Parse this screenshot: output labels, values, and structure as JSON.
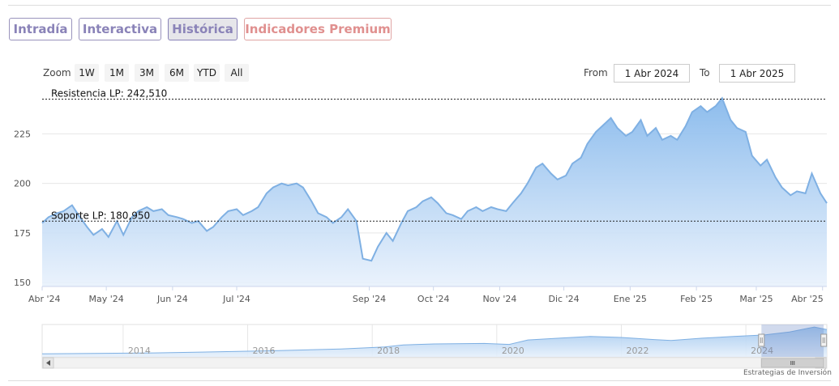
{
  "tabs": [
    {
      "label": "Intradía",
      "active": false
    },
    {
      "label": "Interactiva",
      "active": false
    },
    {
      "label": "Histórica",
      "active": true
    },
    {
      "label": "Indicadores Premium",
      "active": false
    }
  ],
  "zoom": {
    "label": "Zoom",
    "options": [
      "1W",
      "1M",
      "3M",
      "6M",
      "YTD",
      "All"
    ]
  },
  "range": {
    "from_label": "From",
    "from_value": "1 Abr 2024",
    "to_label": "To",
    "to_value": "1 Abr 2025"
  },
  "credit": "Estrategias de Inversión",
  "colors": {
    "line": "#7fb0e3",
    "fill": "#a9cdf1",
    "accent": "#8a83b8",
    "premium": "#e0908f"
  },
  "chart_data": {
    "type": "area",
    "y_ticks": [
      150,
      175,
      200,
      225
    ],
    "ylim": [
      148,
      246
    ],
    "x_ticks": [
      "Abr '24",
      "May '24",
      "Jun '24",
      "Jul '24",
      "Sep '24",
      "Oct '24",
      "Nov '24",
      "Dic '24",
      "Ene '25",
      "Feb '25",
      "Mar '25",
      "Abr '25"
    ],
    "x_tick_dates": [
      "2024-04-01",
      "2024-05-01",
      "2024-06-01",
      "2024-07-01",
      "2024-09-01",
      "2024-10-01",
      "2024-11-01",
      "2024-12-01",
      "2025-01-01",
      "2025-02-01",
      "2025-03-01",
      "2025-04-01"
    ],
    "date_range": [
      "2024-04-01",
      "2025-04-03"
    ],
    "series": [
      {
        "points": [
          [
            "2024-04-01",
            180
          ],
          [
            "2024-04-04",
            183
          ],
          [
            "2024-04-08",
            185
          ],
          [
            "2024-04-11",
            186
          ],
          [
            "2024-04-15",
            189
          ],
          [
            "2024-04-18",
            184
          ],
          [
            "2024-04-22",
            178
          ],
          [
            "2024-04-25",
            174
          ],
          [
            "2024-04-29",
            177
          ],
          [
            "2024-05-02",
            173
          ],
          [
            "2024-05-06",
            181
          ],
          [
            "2024-05-09",
            174
          ],
          [
            "2024-05-13",
            183
          ],
          [
            "2024-05-16",
            186
          ],
          [
            "2024-05-20",
            188
          ],
          [
            "2024-05-23",
            186
          ],
          [
            "2024-05-27",
            187
          ],
          [
            "2024-05-30",
            184
          ],
          [
            "2024-06-03",
            183
          ],
          [
            "2024-06-06",
            182
          ],
          [
            "2024-06-10",
            180
          ],
          [
            "2024-06-13",
            181
          ],
          [
            "2024-06-17",
            176
          ],
          [
            "2024-06-20",
            178
          ],
          [
            "2024-06-24",
            183
          ],
          [
            "2024-06-27",
            186
          ],
          [
            "2024-07-01",
            187
          ],
          [
            "2024-07-04",
            184
          ],
          [
            "2024-07-08",
            186
          ],
          [
            "2024-07-11",
            188
          ],
          [
            "2024-07-15",
            195
          ],
          [
            "2024-07-18",
            198
          ],
          [
            "2024-07-22",
            200
          ],
          [
            "2024-07-25",
            199
          ],
          [
            "2024-07-29",
            200
          ],
          [
            "2024-08-01",
            198
          ],
          [
            "2024-08-05",
            191
          ],
          [
            "2024-08-08",
            185
          ],
          [
            "2024-08-12",
            183
          ],
          [
            "2024-08-15",
            180
          ],
          [
            "2024-08-19",
            183
          ],
          [
            "2024-08-22",
            187
          ],
          [
            "2024-08-26",
            181
          ],
          [
            "2024-08-29",
            162
          ],
          [
            "2024-09-02",
            161
          ],
          [
            "2024-09-05",
            168
          ],
          [
            "2024-09-09",
            175
          ],
          [
            "2024-09-12",
            171
          ],
          [
            "2024-09-16",
            180
          ],
          [
            "2024-09-19",
            186
          ],
          [
            "2024-09-23",
            188
          ],
          [
            "2024-09-26",
            191
          ],
          [
            "2024-09-30",
            193
          ],
          [
            "2024-10-03",
            190
          ],
          [
            "2024-10-07",
            185
          ],
          [
            "2024-10-10",
            184
          ],
          [
            "2024-10-14",
            182
          ],
          [
            "2024-10-17",
            186
          ],
          [
            "2024-10-21",
            188
          ],
          [
            "2024-10-24",
            186
          ],
          [
            "2024-10-28",
            188
          ],
          [
            "2024-10-31",
            187
          ],
          [
            "2024-11-04",
            186
          ],
          [
            "2024-11-07",
            190
          ],
          [
            "2024-11-11",
            195
          ],
          [
            "2024-11-14",
            200
          ],
          [
            "2024-11-18",
            208
          ],
          [
            "2024-11-21",
            210
          ],
          [
            "2024-11-25",
            205
          ],
          [
            "2024-11-28",
            202
          ],
          [
            "2024-12-02",
            204
          ],
          [
            "2024-12-05",
            210
          ],
          [
            "2024-12-09",
            213
          ],
          [
            "2024-12-12",
            220
          ],
          [
            "2024-12-16",
            226
          ],
          [
            "2024-12-19",
            229
          ],
          [
            "2024-12-23",
            233
          ],
          [
            "2024-12-26",
            228
          ],
          [
            "2024-12-30",
            224
          ],
          [
            "2025-01-02",
            226
          ],
          [
            "2025-01-06",
            232
          ],
          [
            "2025-01-09",
            224
          ],
          [
            "2025-01-13",
            228
          ],
          [
            "2025-01-16",
            222
          ],
          [
            "2025-01-20",
            224
          ],
          [
            "2025-01-23",
            222
          ],
          [
            "2025-01-27",
            229
          ],
          [
            "2025-01-30",
            236
          ],
          [
            "2025-02-03",
            239
          ],
          [
            "2025-02-06",
            236
          ],
          [
            "2025-02-10",
            239
          ],
          [
            "2025-02-13",
            243
          ],
          [
            "2025-02-17",
            232
          ],
          [
            "2025-02-20",
            228
          ],
          [
            "2025-02-24",
            226
          ],
          [
            "2025-02-27",
            214
          ],
          [
            "2025-03-03",
            209
          ],
          [
            "2025-03-06",
            212
          ],
          [
            "2025-03-10",
            203
          ],
          [
            "2025-03-13",
            198
          ],
          [
            "2025-03-17",
            194
          ],
          [
            "2025-03-20",
            196
          ],
          [
            "2025-03-24",
            195
          ],
          [
            "2025-03-27",
            205
          ],
          [
            "2025-03-31",
            195
          ],
          [
            "2025-04-03",
            190
          ]
        ]
      }
    ],
    "annotations": [
      {
        "label": "Resistencia LP: 242,510",
        "value": 242.51
      },
      {
        "label": "Soporte LP: 180,950",
        "value": 180.95
      }
    ],
    "navigator": {
      "x_ticks": [
        "2014",
        "2016",
        "2018",
        "2020",
        "2022",
        "2024"
      ],
      "x_tick_years": [
        2014,
        2016,
        2018,
        2020,
        2022,
        2024
      ],
      "year_range": [
        2012.7,
        2025.3
      ],
      "history": [
        [
          2012.7,
          42
        ],
        [
          2013.5,
          44
        ],
        [
          2014.5,
          46
        ],
        [
          2015.5,
          50
        ],
        [
          2016.5,
          55
        ],
        [
          2017.5,
          62
        ],
        [
          2018.2,
          70
        ],
        [
          2018.5,
          78
        ],
        [
          2019.0,
          82
        ],
        [
          2019.8,
          84
        ],
        [
          2020.2,
          80
        ],
        [
          2020.5,
          98
        ],
        [
          2021.0,
          105
        ],
        [
          2021.5,
          112
        ],
        [
          2022.0,
          108
        ],
        [
          2022.5,
          100
        ],
        [
          2022.8,
          96
        ],
        [
          2023.3,
          105
        ],
        [
          2023.8,
          112
        ],
        [
          2024.3,
          118
        ],
        [
          2024.7,
          130
        ],
        [
          2025.0,
          145
        ],
        [
          2025.1,
          150
        ],
        [
          2025.3,
          140
        ]
      ],
      "history_ylim": [
        30,
        160
      ],
      "selected_range": [
        2024.25,
        2025.25
      ]
    }
  }
}
